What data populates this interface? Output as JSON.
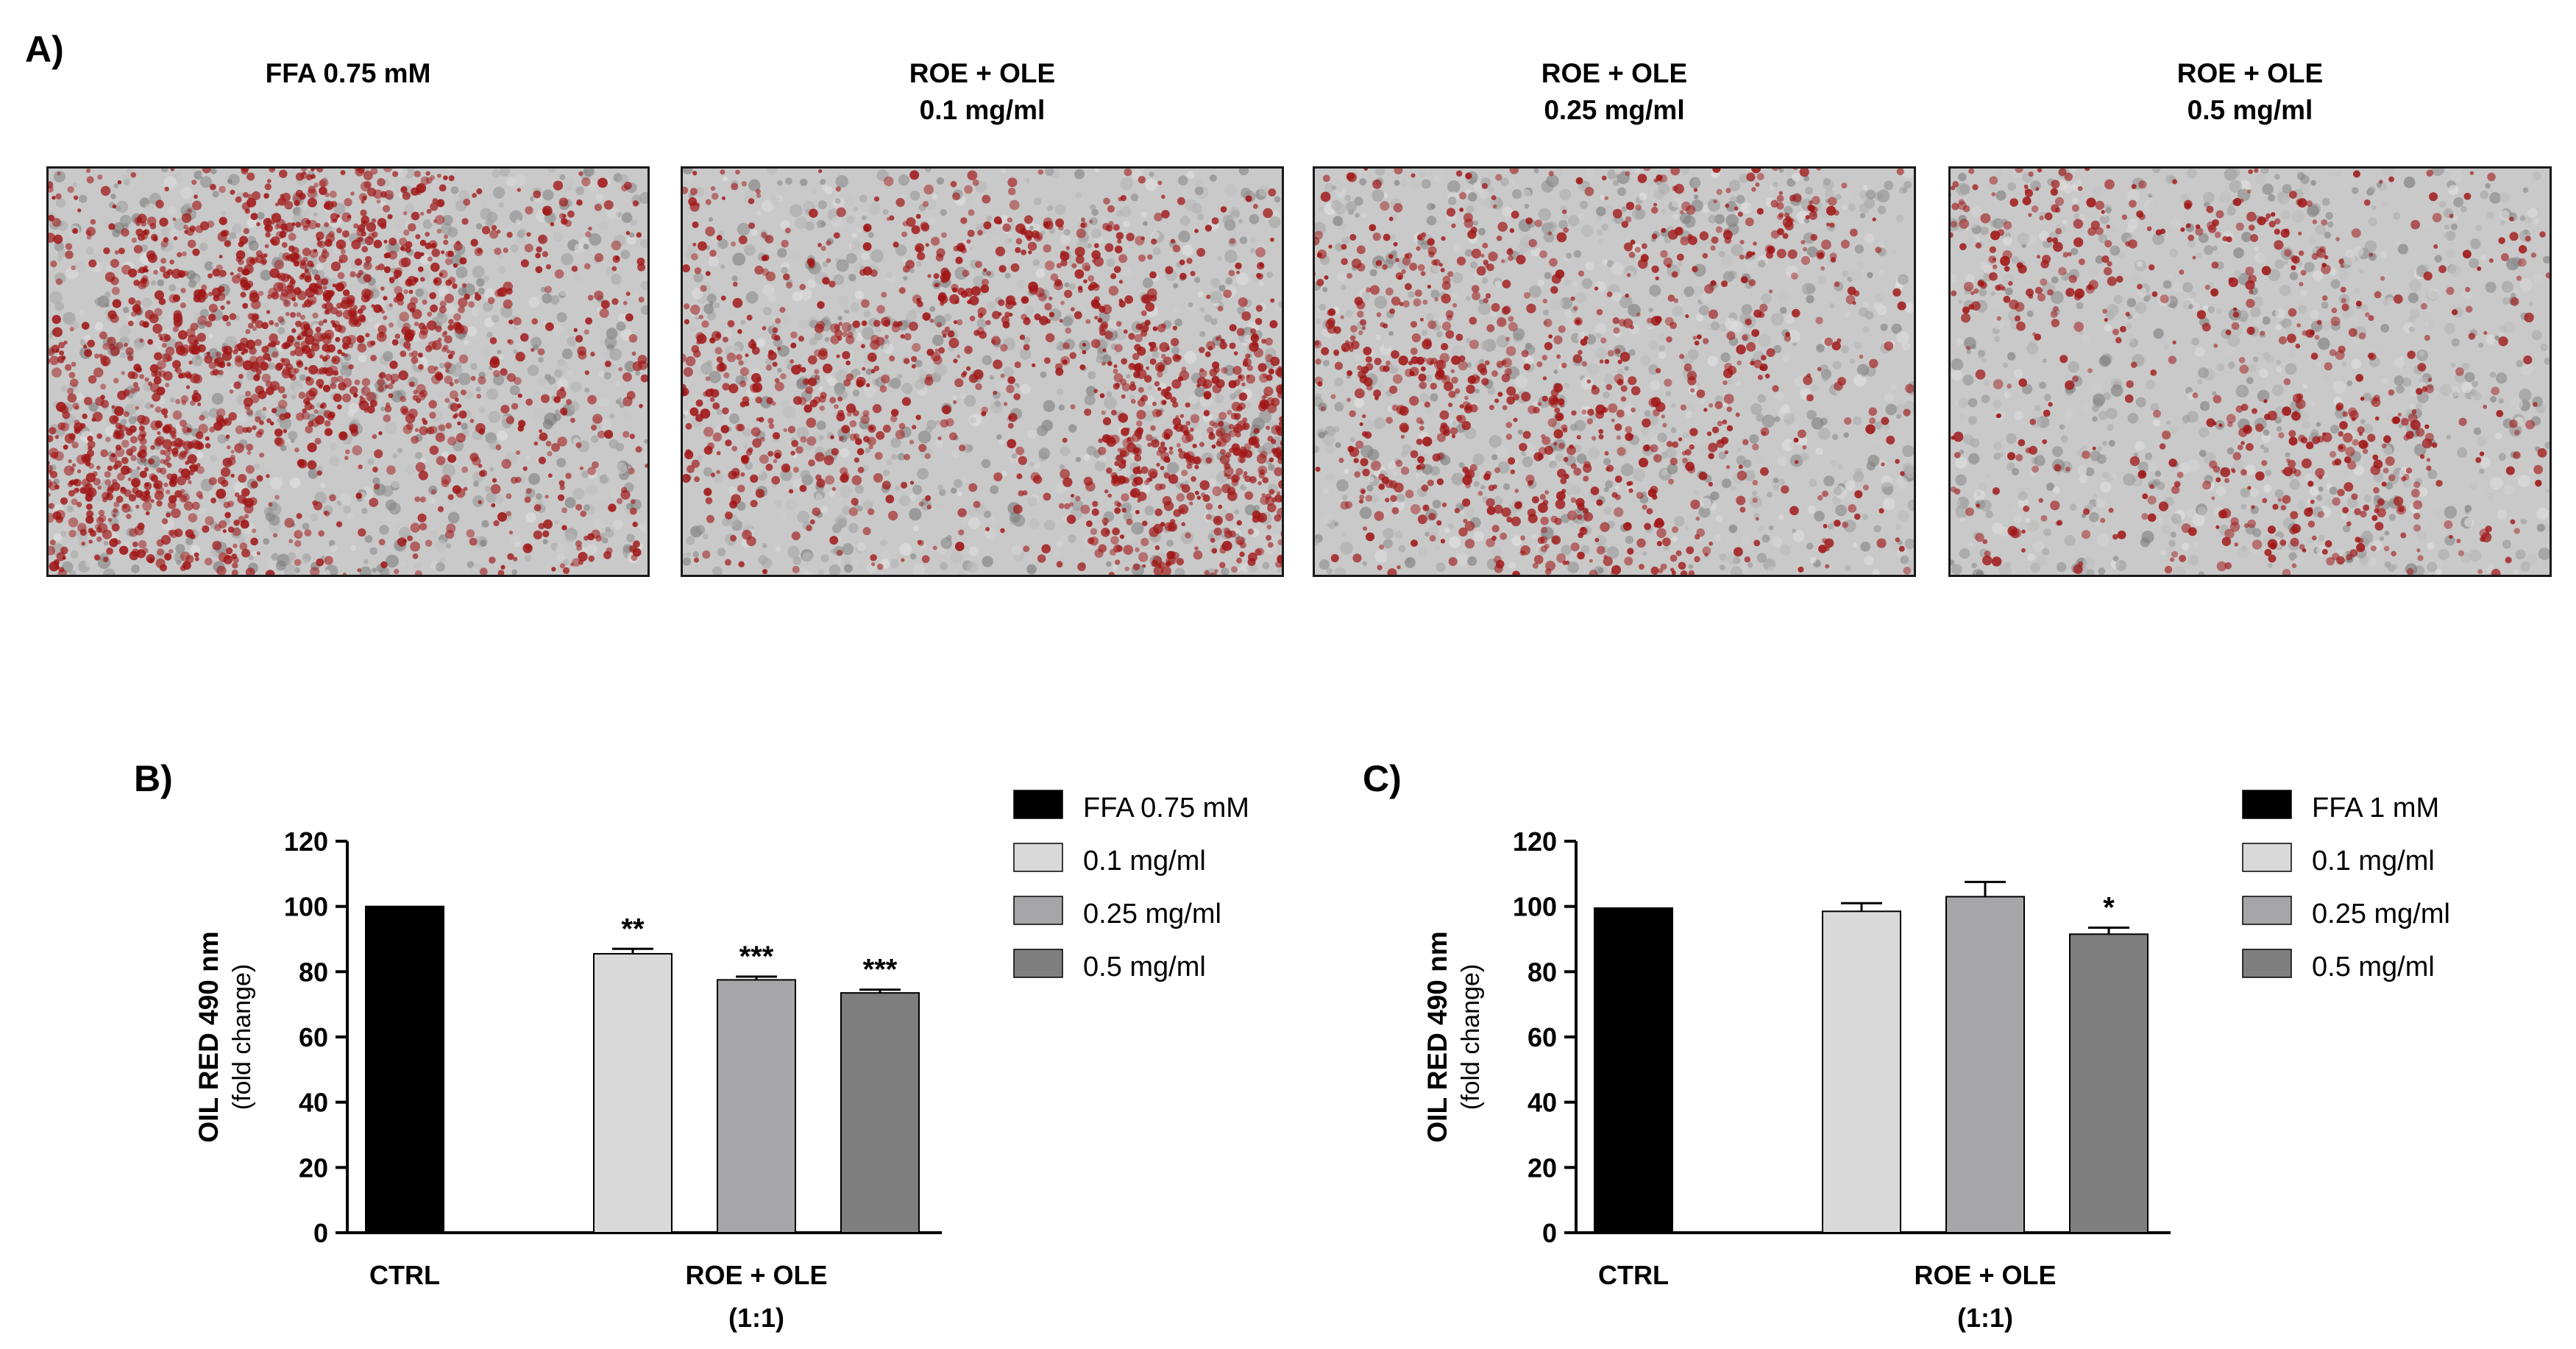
{
  "panel_a": {
    "letter": "A)",
    "images": [
      {
        "title_line1": "FFA 0.75 mM",
        "title_line2": "",
        "stain_density": 0.85
      },
      {
        "title_line1": "ROE + OLE",
        "title_line2": "0.1 mg/ml",
        "stain_density": 0.6
      },
      {
        "title_line1": "ROE + OLE",
        "title_line2": "0.25 mg/ml",
        "stain_density": 0.45
      },
      {
        "title_line1": "ROE + OLE",
        "title_line2": "0.5 mg/ml",
        "stain_density": 0.3
      }
    ]
  },
  "colors": {
    "ffa": "#000000",
    "dose_01": "#d9d9d9",
    "dose_025": "#a6a6a8",
    "dose_05": "#7f7f7f",
    "stain": "#a01515",
    "tissue": "#c9c9c9"
  },
  "chart_data": [
    {
      "panel_label": "B)",
      "type": "bar",
      "ylabel": "OIL RED 490 nm",
      "ylabel_sub": "(fold change)",
      "ylim": [
        0,
        120
      ],
      "yticks": [
        0,
        20,
        40,
        60,
        80,
        100,
        120
      ],
      "group_labels": [
        {
          "label": "CTRL",
          "sub": ""
        },
        {
          "label": "ROE + OLE",
          "sub": "(1:1)"
        }
      ],
      "bars": [
        {
          "name": "FFA 0.75 mM",
          "value": 100,
          "error": 0,
          "sig": "",
          "group": 0
        },
        {
          "name": "0.1 mg/ml",
          "value": 85.5,
          "error": 1.5,
          "sig": "**",
          "group": 1
        },
        {
          "name": "0.25 mg/ml",
          "value": 77.5,
          "error": 1.0,
          "sig": "***",
          "group": 1
        },
        {
          "name": "0.5 mg/ml",
          "value": 73.5,
          "error": 1.0,
          "sig": "***",
          "group": 1
        }
      ],
      "legend": [
        "FFA 0.75 mM",
        "0.1 mg/ml",
        "0.25 mg/ml",
        "0.5 mg/ml"
      ],
      "legend_position": "right"
    },
    {
      "panel_label": "C)",
      "type": "bar",
      "ylabel": "OIL RED 490 nm",
      "ylabel_sub": "(fold change)",
      "ylim": [
        0,
        120
      ],
      "yticks": [
        0,
        20,
        40,
        60,
        80,
        100,
        120
      ],
      "group_labels": [
        {
          "label": "CTRL",
          "sub": ""
        },
        {
          "label": "ROE + OLE",
          "sub": "(1:1)"
        }
      ],
      "bars": [
        {
          "name": "FFA 1 mM",
          "value": 99.5,
          "error": 0,
          "sig": "",
          "group": 0
        },
        {
          "name": "0.1 mg/ml",
          "value": 98.5,
          "error": 2.5,
          "sig": "",
          "group": 1
        },
        {
          "name": "0.25 mg/ml",
          "value": 103,
          "error": 4.5,
          "sig": "",
          "group": 1
        },
        {
          "name": "0.5 mg/ml",
          "value": 91.5,
          "error": 2.0,
          "sig": "*",
          "group": 1
        }
      ],
      "legend": [
        "FFA 1 mM",
        "0.1 mg/ml",
        "0.25 mg/ml",
        "0.5 mg/ml"
      ],
      "legend_position": "right"
    }
  ]
}
